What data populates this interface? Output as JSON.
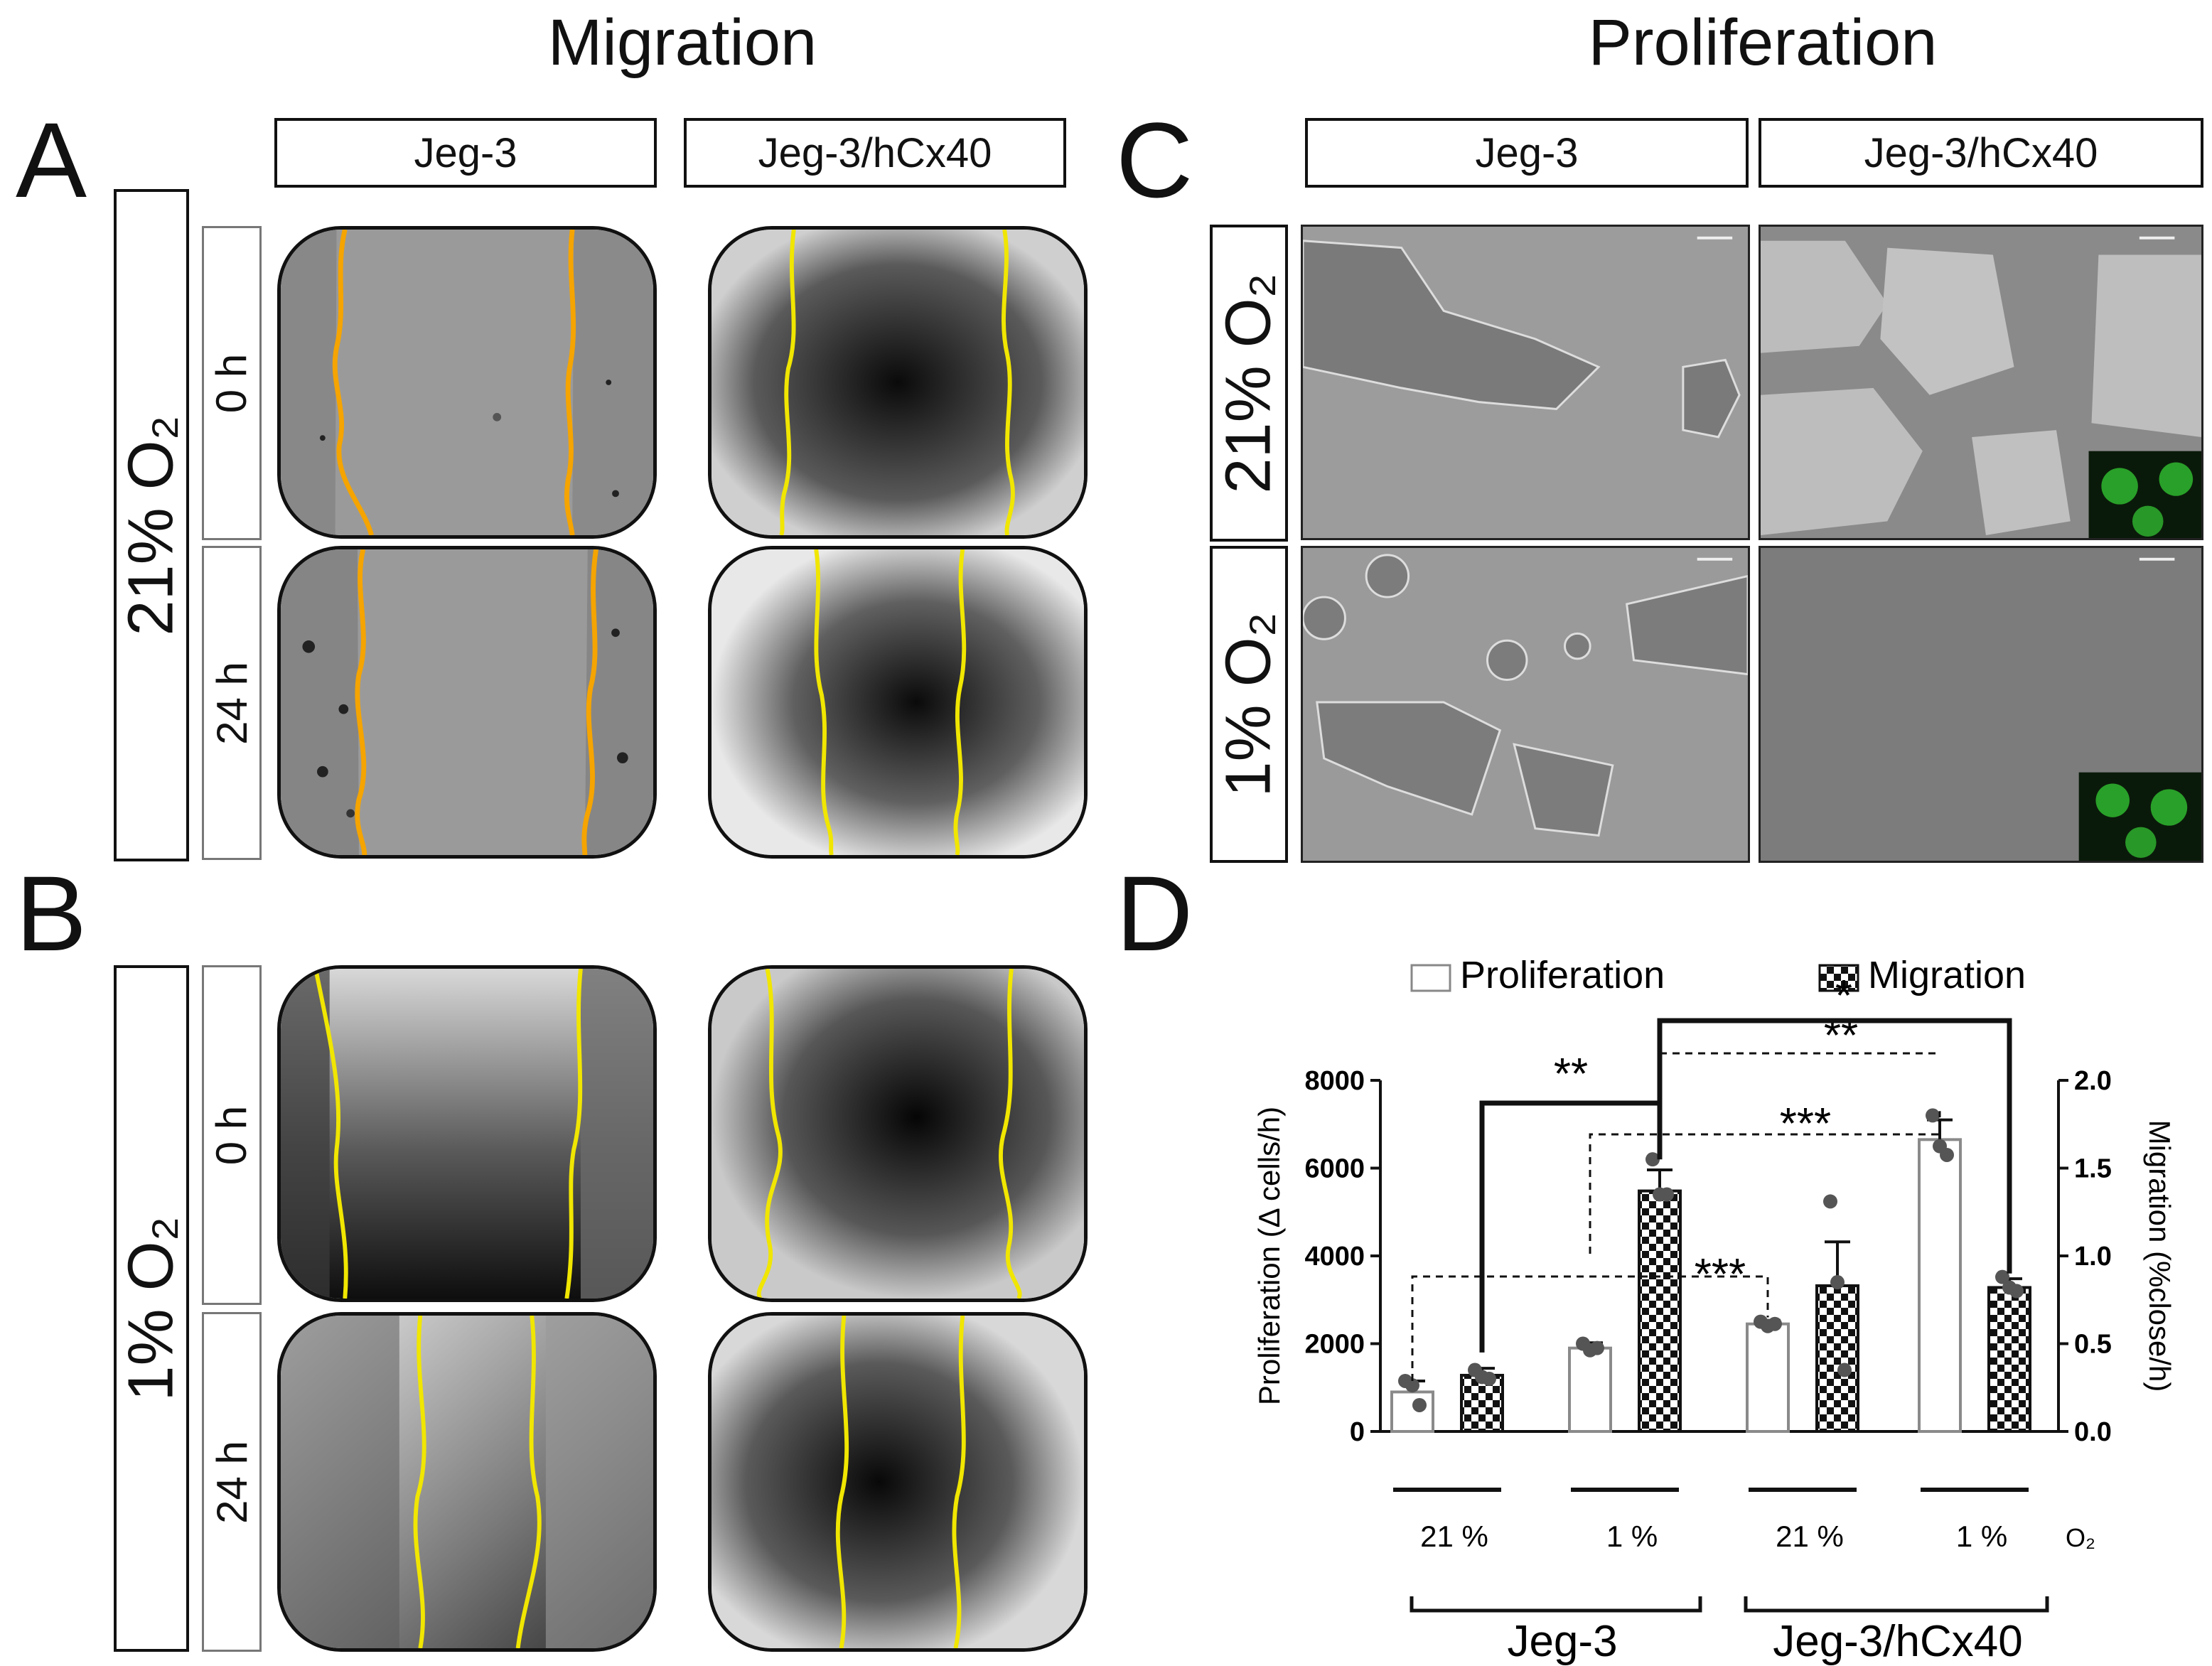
{
  "headings": {
    "migration": "Migration",
    "proliferation": "Proliferation"
  },
  "panels": {
    "a": "A",
    "b": "B",
    "c": "C",
    "d": "D"
  },
  "columns": {
    "jeg3": "Jeg-3",
    "hcx40": "Jeg-3/hCx40"
  },
  "conditions": {
    "o21": "21% O₂",
    "o1": "1% O₂"
  },
  "times": {
    "t0": "0 h",
    "t24": "24 h"
  },
  "colors": {
    "wound_edge_21": "#f5a400",
    "wound_edge_1": "#f0e600",
    "gfp_inset": "#2fb82f",
    "bar_edge": "#222222"
  },
  "chart_data": {
    "type": "bar",
    "legend": [
      "Proliferation",
      "Migration"
    ],
    "legend_position": "top",
    "groups": [
      "21 %",
      "1 %",
      "21 %",
      "1 %"
    ],
    "o2_label": "O₂",
    "cell_lines": [
      "Jeg-3",
      "Jeg-3/hCx40"
    ],
    "ylabel_left": "Proliferation (Δ cells/h)",
    "ylabel_right": "Migration (%close/h)",
    "ylim_left": [
      0,
      8000
    ],
    "ylim_right": [
      0,
      2.0
    ],
    "yticks_left": [
      "0",
      "2000",
      "4000",
      "6000",
      "8000"
    ],
    "yticks_right": [
      "0.0",
      "0.5",
      "1.0",
      "1.5",
      "2.0"
    ],
    "series": [
      {
        "name": "Proliferation",
        "axis": "left",
        "pattern": "open",
        "values": [
          900,
          1900,
          2450,
          6650
        ],
        "errors": [
          250,
          120,
          80,
          450
        ],
        "points": [
          [
            1150,
            1050,
            600
          ],
          [
            2000,
            1850,
            1900
          ],
          [
            2500,
            2400,
            2450
          ],
          [
            7200,
            6500,
            6300
          ]
        ]
      },
      {
        "name": "Migration",
        "axis": "right",
        "pattern": "checker",
        "values": [
          0.32,
          1.37,
          0.83,
          0.82
        ],
        "errors": [
          0.04,
          0.12,
          0.25,
          0.05
        ],
        "points": [
          [
            0.35,
            0.31,
            0.3
          ],
          [
            1.55,
            1.35,
            1.35
          ],
          [
            1.31,
            0.85,
            0.35
          ],
          [
            0.88,
            0.82,
            0.8
          ]
        ]
      }
    ],
    "significance": [
      {
        "label": "**",
        "style": "solid"
      },
      {
        "label": "***",
        "style": "dashed"
      },
      {
        "label": "***",
        "style": "dashed"
      },
      {
        "label": "**",
        "style": "dashed"
      },
      {
        "label": "*",
        "style": "solid"
      }
    ]
  }
}
